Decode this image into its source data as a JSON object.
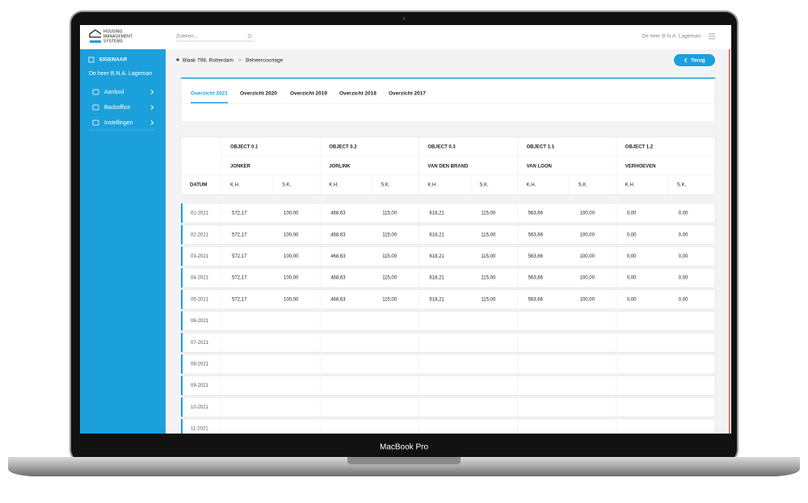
{
  "header": {
    "logo": [
      "HOUSING",
      "MANAGEMENT",
      "SYSTEMS"
    ],
    "search_placeholder": "Zoeken...",
    "user": "De heer B.N.A. Lageman"
  },
  "sidebar": {
    "section": "EIGENAAR",
    "user": "De heer B.N.A. Lageman",
    "menu": [
      "Aanbod",
      "Backoffice",
      "Instellingen"
    ]
  },
  "breadcrumb": [
    "Blaak 798, Rotterdam",
    "Beheercourtage"
  ],
  "back_button": "Terug",
  "tabs": [
    "Overzicht 2021",
    "Overzicht 2020",
    "Overzicht 2019",
    "Overzicht 2018",
    "Overzicht 2017"
  ],
  "table": {
    "date_header": "DATUM",
    "subheaders": [
      "K.H.",
      "S.K."
    ],
    "objects": [
      {
        "code": "OBJECT 0.1",
        "name": "JONKER"
      },
      {
        "code": "OBJECT 0.2",
        "name": "JORLINK"
      },
      {
        "code": "OBJECT 0.3",
        "name": "VAN DEN BRAND"
      },
      {
        "code": "OBJECT 1.1",
        "name": "VAN LOON"
      },
      {
        "code": "OBJECT 1.2",
        "name": "VERHOEVEN"
      }
    ],
    "rows": [
      {
        "date": "01-2021",
        "cells": [
          "572,17",
          "100,00",
          "468,63",
          "115,00",
          "618,21",
          "115,00",
          "563,66",
          "100,00",
          "0,00",
          "0,00"
        ]
      },
      {
        "date": "02-2021",
        "cells": [
          "572,17",
          "100,00",
          "468,63",
          "115,00",
          "618,21",
          "115,00",
          "563,66",
          "100,00",
          "0,00",
          "0,00"
        ]
      },
      {
        "date": "03-2021",
        "cells": [
          "572,17",
          "100,00",
          "468,63",
          "115,00",
          "618,21",
          "115,00",
          "563,66",
          "100,00",
          "0,00",
          "0,00"
        ]
      },
      {
        "date": "04-2021",
        "cells": [
          "572,17",
          "100,00",
          "468,63",
          "115,00",
          "618,21",
          "115,00",
          "563,66",
          "100,00",
          "0,00",
          "0,00"
        ]
      },
      {
        "date": "05-2021",
        "cells": [
          "572,17",
          "100,00",
          "468,63",
          "115,00",
          "618,21",
          "115,00",
          "563,66",
          "100,00",
          "0,00",
          "0,00"
        ]
      },
      {
        "date": "06-2021"
      },
      {
        "date": "07-2021"
      },
      {
        "date": "08-2021"
      },
      {
        "date": "09-2021"
      },
      {
        "date": "10-2021"
      },
      {
        "date": "11-2021"
      }
    ]
  },
  "device_label": "MacBook Pro"
}
